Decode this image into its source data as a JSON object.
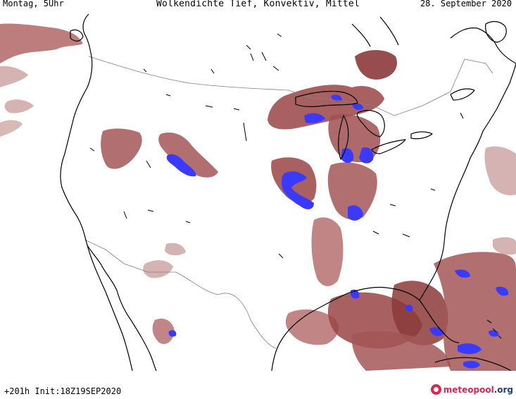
{
  "header": {
    "left": "Montag, 5Uhr",
    "title": "Wolkendichte  Tief, Konvektiv, Mittel",
    "right": "28. September 2020"
  },
  "footer": {
    "run_info": "+201h Init:18Z19SEP2020",
    "brand_main": "meteopool",
    "brand_suffix": ".org"
  },
  "colors": {
    "cloud_low": "#cca0a0",
    "cloud_mid": "#b36666",
    "cloud_dense": "#8c3a3a",
    "convective": "#3a3aff",
    "coastline": "#000000",
    "border": "#808080"
  }
}
